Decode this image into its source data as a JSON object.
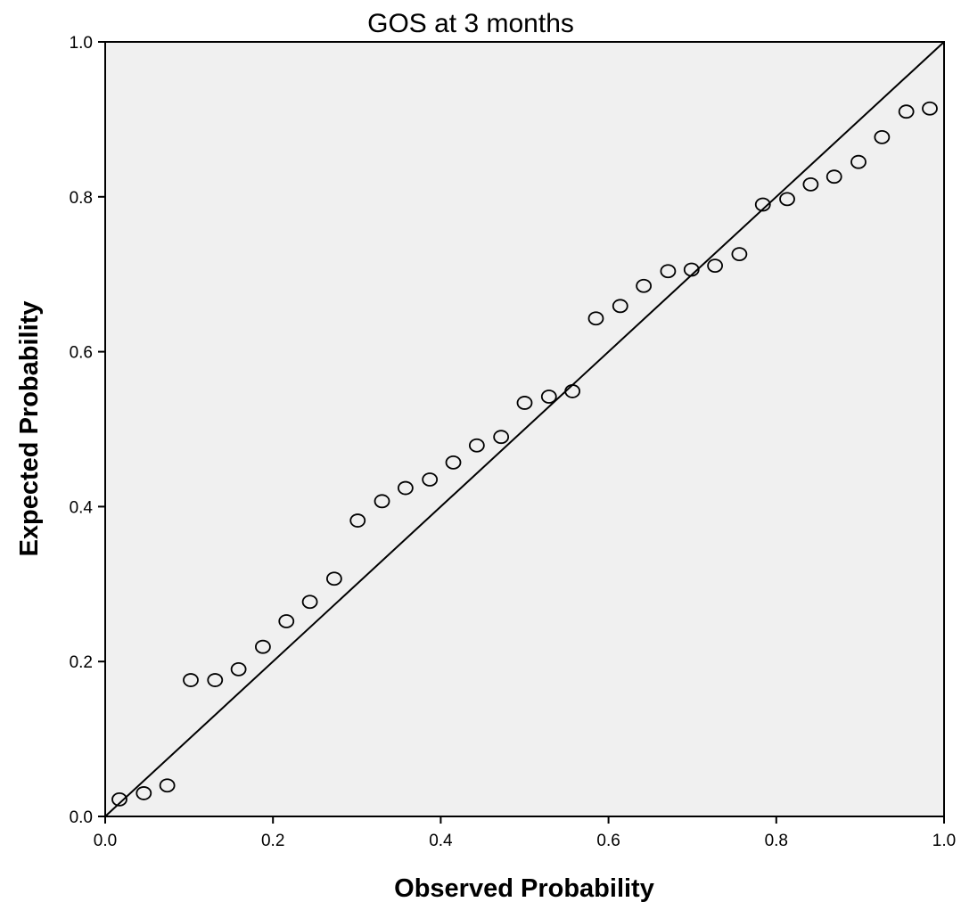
{
  "chart_data": {
    "type": "scatter",
    "title": "GOS at 3 months",
    "xlabel": "Observed Probability",
    "ylabel": "Expected Probability",
    "xlim": [
      0.0,
      1.0
    ],
    "ylim": [
      0.0,
      1.0
    ],
    "x_ticks": [
      "0.0",
      "0.2",
      "0.4",
      "0.6",
      "0.8",
      "1.0"
    ],
    "y_ticks": [
      "0.0",
      "0.2",
      "0.4",
      "0.6",
      "0.8",
      "1.0"
    ],
    "grid": false,
    "legend": "none",
    "reference_line": {
      "from": [
        0.0,
        0.0
      ],
      "to": [
        1.0,
        1.0
      ]
    },
    "series": [
      {
        "x": [
          0.017,
          0.046,
          0.074,
          0.102,
          0.131,
          0.159,
          0.188,
          0.216,
          0.244,
          0.273,
          0.301,
          0.33,
          0.358,
          0.387,
          0.415,
          0.443,
          0.472,
          0.5,
          0.529,
          0.557,
          0.585,
          0.614,
          0.642,
          0.671,
          0.699,
          0.727,
          0.756,
          0.784,
          0.813,
          0.841,
          0.869,
          0.898,
          0.926,
          0.955,
          0.983
        ],
        "y": [
          0.022,
          0.03,
          0.04,
          0.176,
          0.176,
          0.19,
          0.219,
          0.252,
          0.277,
          0.307,
          0.382,
          0.407,
          0.424,
          0.435,
          0.457,
          0.479,
          0.49,
          0.534,
          0.542,
          0.549,
          0.643,
          0.659,
          0.685,
          0.704,
          0.706,
          0.711,
          0.726,
          0.79,
          0.797,
          0.816,
          0.826,
          0.845,
          0.877,
          0.91,
          0.914
        ]
      }
    ]
  },
  "colors": {
    "plot_background": "#f0f0f0",
    "axis": "#000000",
    "marker_stroke": "#000000"
  }
}
